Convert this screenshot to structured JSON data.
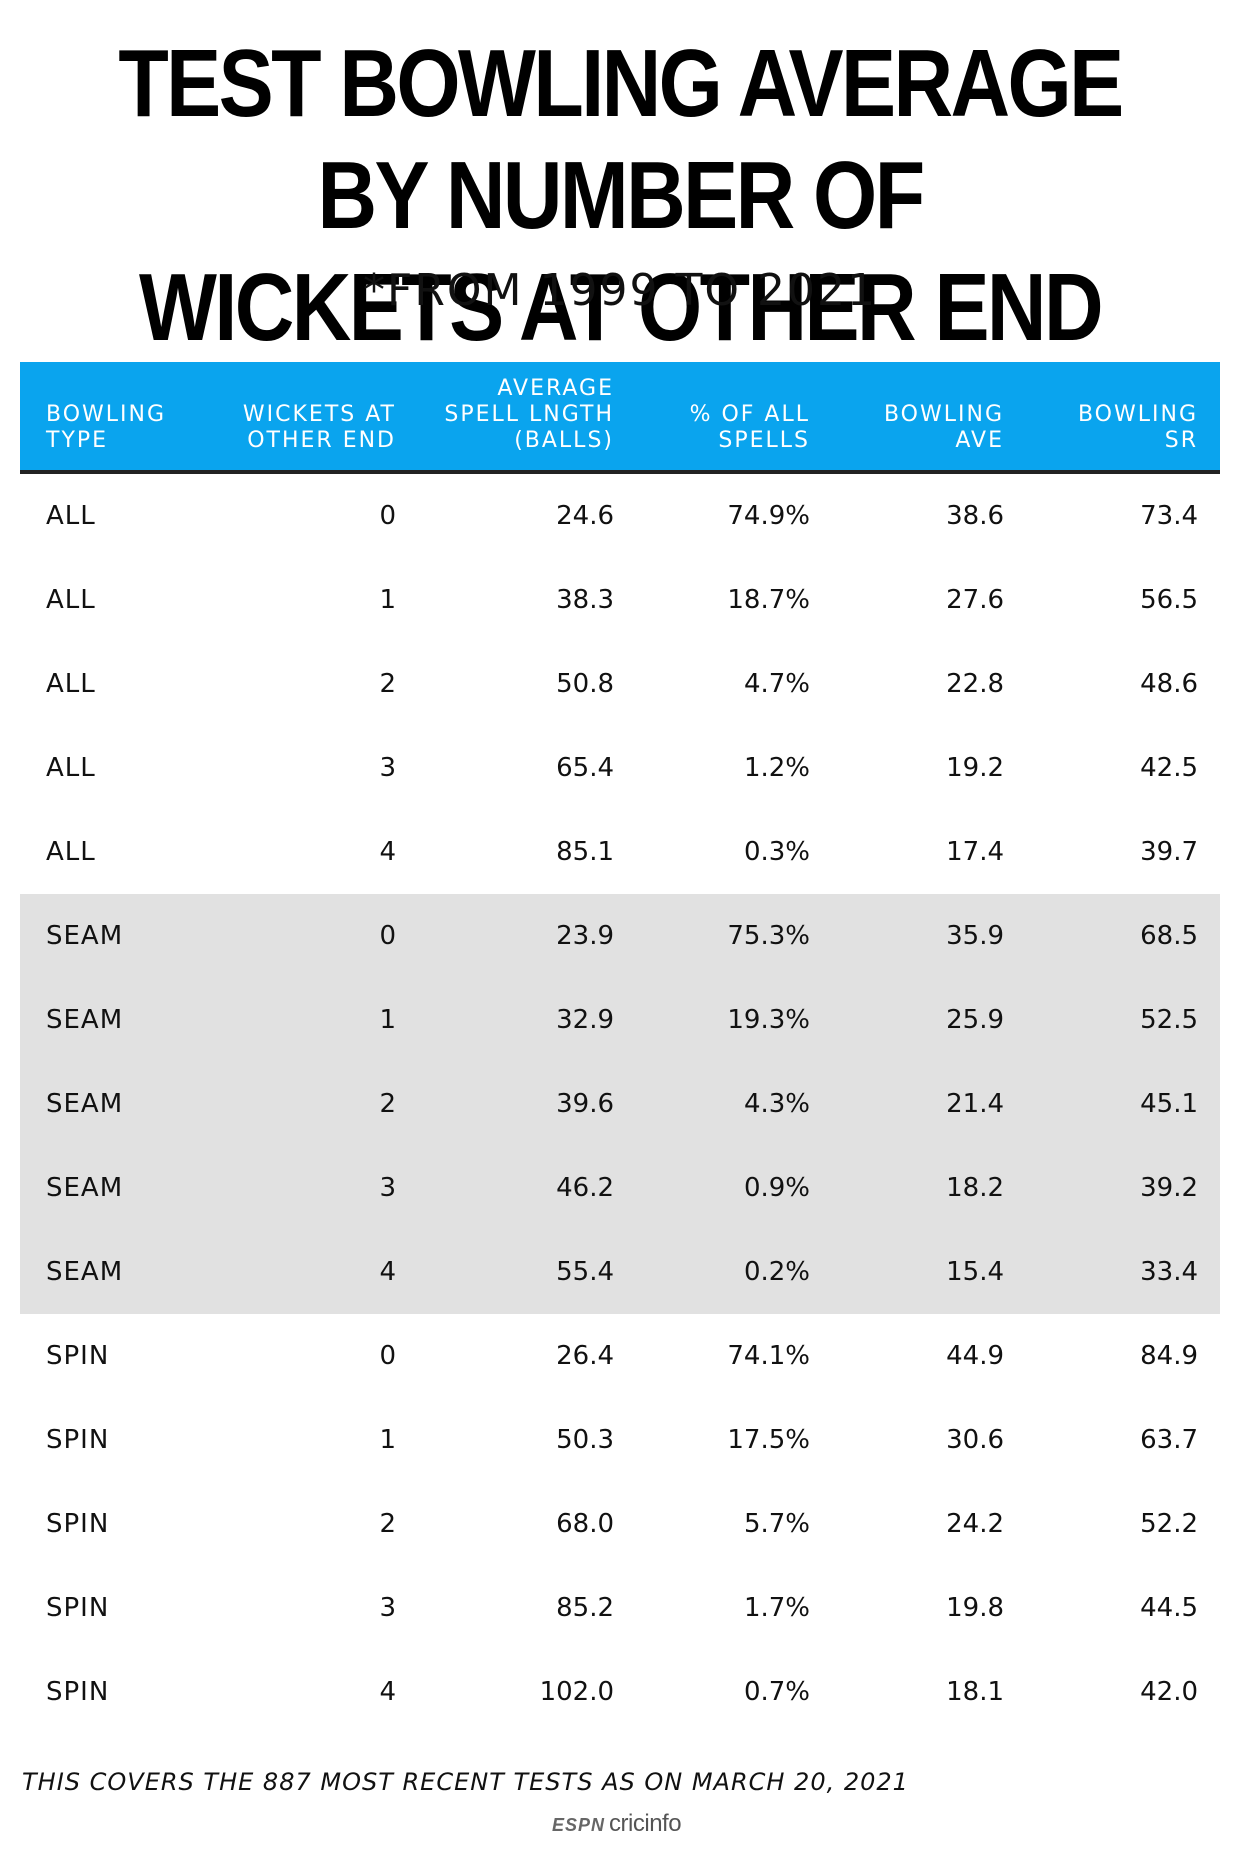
{
  "title_line1": "TEST BOWLING AVERAGE BY NUMBER OF",
  "title_line2": "WICKETS AT OTHER END",
  "subtitle": "*FROM 1999 TO 2021",
  "footnote": "THIS COVERS THE 887 MOST RECENT TESTS AS ON MARCH 20, 2021",
  "brand": {
    "espn": "ESPN",
    "cric": "cricinfo"
  },
  "colors": {
    "header_bg": "#0aa4ee",
    "alt_row_bg": "#e1e1e1",
    "header_text": "#ffffff"
  },
  "chart_data": {
    "type": "table",
    "title": "TEST BOWLING AVERAGE BY NUMBER OF WICKETS AT OTHER END",
    "subtitle": "*FROM 1999 TO 2021",
    "columns": [
      "BOWLING\nTYPE",
      "WICKETS AT\nOTHER END",
      "AVERAGE\nSPELL LNGTH\n(BALLS)",
      "% OF ALL\nSPELLS",
      "BOWLING\nAVE",
      "BOWLING\nSR"
    ],
    "rows": [
      [
        "ALL",
        "0",
        "24.6",
        "74.9%",
        "38.6",
        "73.4"
      ],
      [
        "ALL",
        "1",
        "38.3",
        "18.7%",
        "27.6",
        "56.5"
      ],
      [
        "ALL",
        "2",
        "50.8",
        "4.7%",
        "22.8",
        "48.6"
      ],
      [
        "ALL",
        "3",
        "65.4",
        "1.2%",
        "19.2",
        "42.5"
      ],
      [
        "ALL",
        "4",
        "85.1",
        "0.3%",
        "17.4",
        "39.7"
      ],
      [
        "SEAM",
        "0",
        "23.9",
        "75.3%",
        "35.9",
        "68.5"
      ],
      [
        "SEAM",
        "1",
        "32.9",
        "19.3%",
        "25.9",
        "52.5"
      ],
      [
        "SEAM",
        "2",
        "39.6",
        "4.3%",
        "21.4",
        "45.1"
      ],
      [
        "SEAM",
        "3",
        "46.2",
        "0.9%",
        "18.2",
        "39.2"
      ],
      [
        "SEAM",
        "4",
        "55.4",
        "0.2%",
        "15.4",
        "33.4"
      ],
      [
        "SPIN",
        "0",
        "26.4",
        "74.1%",
        "44.9",
        "84.9"
      ],
      [
        "SPIN",
        "1",
        "50.3",
        "17.5%",
        "30.6",
        "63.7"
      ],
      [
        "SPIN",
        "2",
        "68.0",
        "5.7%",
        "24.2",
        "52.2"
      ],
      [
        "SPIN",
        "3",
        "85.2",
        "1.7%",
        "19.8",
        "44.5"
      ],
      [
        "SPIN",
        "4",
        "102.0",
        "0.7%",
        "18.1",
        "42.0"
      ]
    ],
    "shaded_group": "SEAM"
  }
}
